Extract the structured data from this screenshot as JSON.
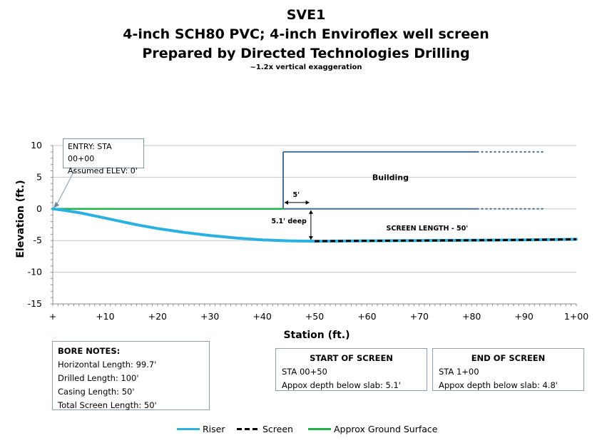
{
  "titles": {
    "line1": "SVE1",
    "line2": "4-inch SCH80 PVC; 4-inch Enviroflex well screen",
    "line3": "Prepared by Directed Technologies Drilling",
    "line4": "~1.2x vertical exaggeration"
  },
  "chart_data": {
    "type": "line",
    "xlabel": "Station (ft.)",
    "ylabel": "Elevation (ft.)",
    "xlim": [
      0,
      100
    ],
    "ylim": [
      -15,
      10
    ],
    "x_ticks": [
      "+",
      "+10",
      "+20",
      "+30",
      "+40",
      "+50",
      "+60",
      "+70",
      "+80",
      "+90",
      "1+00"
    ],
    "y_ticks": [
      "10",
      "5",
      "0",
      "-5",
      "-10",
      "-15"
    ],
    "grid": true,
    "legend_position": "bottom",
    "series": [
      {
        "name": "Riser",
        "color": "#2bb0e0",
        "x": [
          0,
          2,
          5,
          8,
          12,
          16,
          20,
          25,
          30,
          35,
          40,
          45,
          50,
          60,
          70,
          80,
          90,
          100
        ],
        "y": [
          0,
          -0.2,
          -0.6,
          -1.1,
          -1.8,
          -2.5,
          -3.1,
          -3.7,
          -4.2,
          -4.6,
          -4.9,
          -5.05,
          -5.1,
          -5.05,
          -5.0,
          -4.95,
          -4.9,
          -4.8
        ]
      },
      {
        "name": "Screen",
        "color": "#000000",
        "x": [
          50,
          60,
          70,
          80,
          90,
          100
        ],
        "y": [
          -5.1,
          -5.05,
          -5.0,
          -4.95,
          -4.9,
          -4.8
        ]
      },
      {
        "name": "Approx Ground Surface",
        "color": "#22b04a",
        "x": [
          0,
          44
        ],
        "y": [
          0,
          0
        ]
      }
    ],
    "building": {
      "label": "Building",
      "color": "#4a6f8f",
      "x_start": 44,
      "roof_elevation": 9,
      "solid_end": 81,
      "dashed_end": 94,
      "floor_elevation": 0
    },
    "annotations": {
      "entry_line1": "ENTRY: STA 00+00",
      "entry_line2": "Assumed ELEV: 0'",
      "offset_label": "5'",
      "depth_label": "5.1' deep",
      "screen_length": "SCREEN LENGTH - 50'"
    }
  },
  "bore_notes": {
    "title": "BORE NOTES:",
    "lines": [
      "Horizontal Length: 99.7'",
      "Drilled Length: 100'",
      "Casing Length: 50'",
      "Total Screen Length: 50'"
    ]
  },
  "start_of_screen": {
    "title": "START OF SCREEN",
    "lines": [
      "STA 00+50",
      "Appox depth below slab: 5.1'"
    ]
  },
  "end_of_screen": {
    "title": "END OF SCREEN",
    "lines": [
      "STA 1+00",
      "Appox depth below slab: 4.8'"
    ]
  },
  "legend": {
    "riser": "Riser",
    "screen": "Screen",
    "ground": "Approx Ground Surface"
  }
}
